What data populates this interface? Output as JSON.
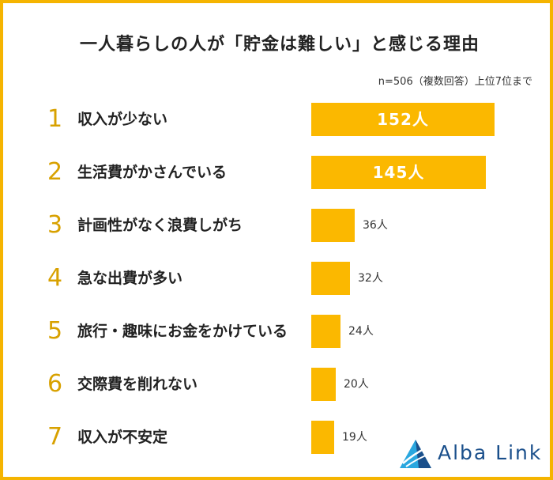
{
  "title": "一人暮らしの人が「貯金は難しい」と感じる理由",
  "note": "n=506（複数回答）上位7位まで",
  "brand": {
    "name": "Alba Link",
    "logo_icon": "alba-link-triangle-logo",
    "color": "#1a4f8b"
  },
  "colors": {
    "bar": "#fbb800",
    "rank": "#d8a100",
    "frame": "#f5b400"
  },
  "chart_data": {
    "type": "bar",
    "orientation": "horizontal",
    "unit": "人",
    "xlim": [
      0,
      152
    ],
    "grid": false,
    "items": [
      {
        "rank": "1",
        "category": "収入が少ない",
        "value": 152,
        "label": "152人"
      },
      {
        "rank": "2",
        "category": "生活費がかさんでいる",
        "value": 145,
        "label": "145人"
      },
      {
        "rank": "3",
        "category": "計画性がなく浪費しがち",
        "value": 36,
        "label": "36人"
      },
      {
        "rank": "4",
        "category": "急な出費が多い",
        "value": 32,
        "label": "32人"
      },
      {
        "rank": "5",
        "category": "旅行・趣味にお金をかけている",
        "value": 24,
        "label": "24人"
      },
      {
        "rank": "6",
        "category": "交際費を削れない",
        "value": 20,
        "label": "20人"
      },
      {
        "rank": "7",
        "category": "収入が不安定",
        "value": 19,
        "label": "19人"
      }
    ]
  }
}
